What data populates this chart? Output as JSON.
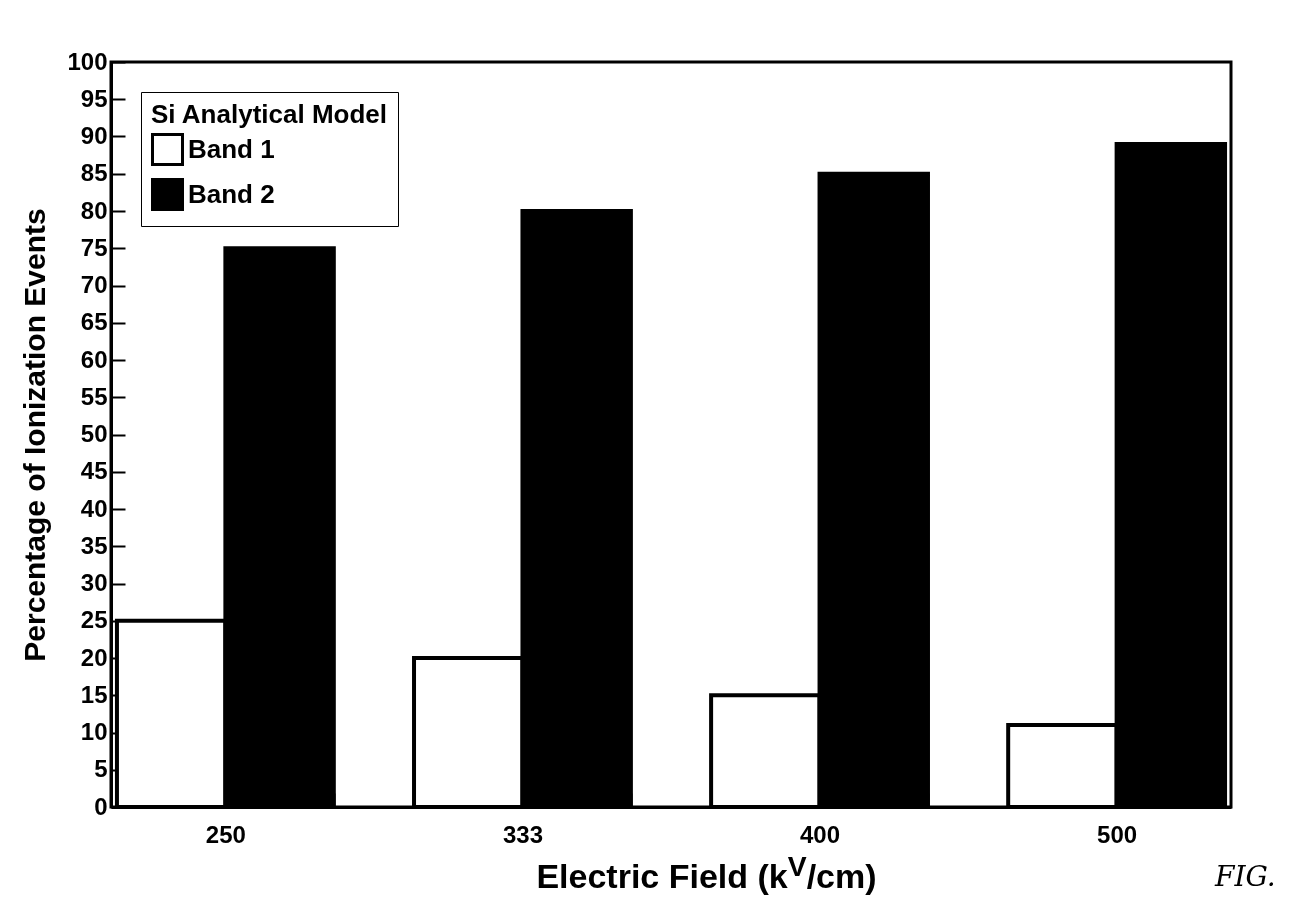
{
  "chart_data": {
    "type": "bar",
    "xlabel": "Electric Field (k$^{V}$/cm)",
    "ylabel": "Percentage of Ionization Events",
    "legend_title": "Si Analytical Model",
    "categories": [
      "250",
      "333",
      "400",
      "500"
    ],
    "series": [
      {
        "name": "Band 1",
        "color": "#ffffff",
        "values": [
          25,
          20,
          15,
          11
        ]
      },
      {
        "name": "Band 2",
        "color": "#000000",
        "values": [
          75,
          80,
          85,
          89
        ]
      }
    ],
    "ylim": [
      0,
      100
    ],
    "yticks": [
      0,
      5,
      10,
      15,
      20,
      25,
      30,
      35,
      40,
      45,
      50,
      55,
      60,
      65,
      70,
      75,
      80,
      85,
      90,
      95,
      100
    ],
    "legend": "top left",
    "annotations": [
      "FIG."
    ]
  }
}
